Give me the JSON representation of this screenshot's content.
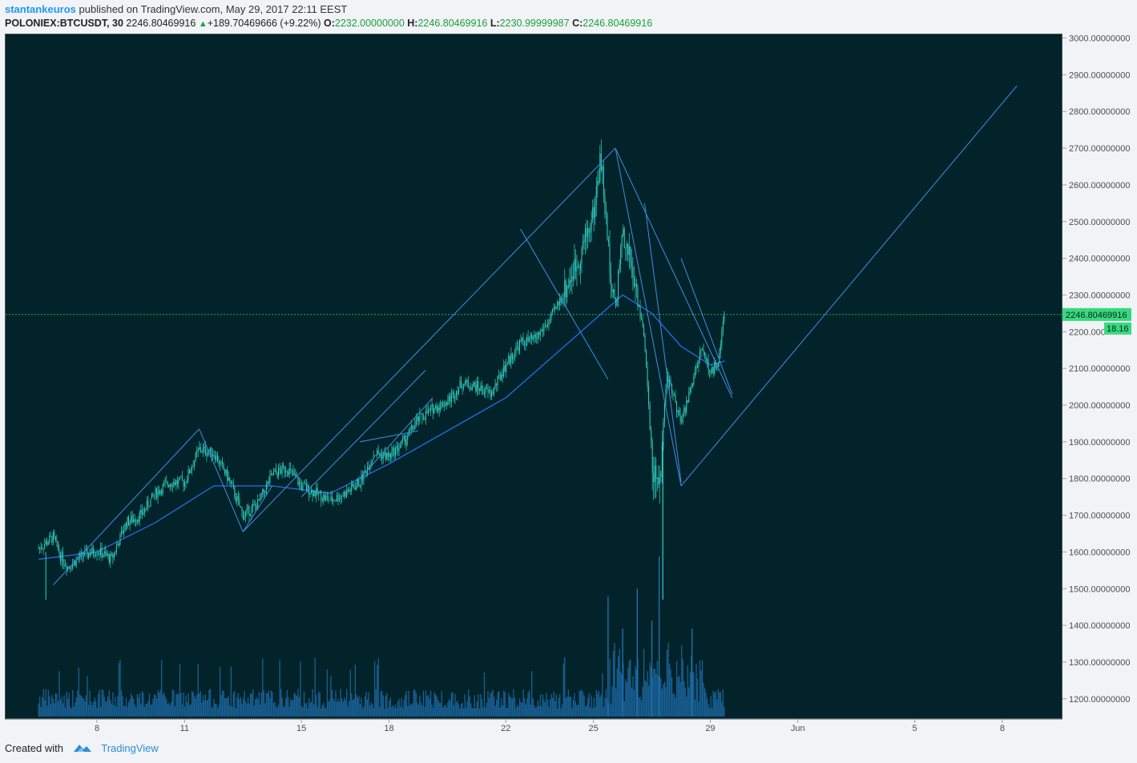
{
  "header": {
    "author": "stantankeuros",
    "published_text": "published on TradingView.com, May 29, 2017 22:11 EEST",
    "symbol": "POLONIEX:BTCUSDT, 30",
    "last_price": "2246.80469916",
    "change_arrow": "▲",
    "change": "+189.70469666 (+9.22%)",
    "o_label": "O:",
    "o_value": "2232.00000000",
    "h_label": "H:",
    "h_value": "2246.80469916",
    "l_label": "L:",
    "l_value": "2230.99999987",
    "c_label": "C:",
    "c_value": "2246.80469916"
  },
  "price_axis": {
    "labels": [
      "3000.00000000",
      "2900.00000000",
      "2800.00000000",
      "2700.00000000",
      "2600.00000000",
      "2500.00000000",
      "2400.00000000",
      "2300.00000000",
      "2200.000",
      "2100.00000000",
      "2000.00000000",
      "1900.00000000",
      "1800.00000000",
      "1700.00000000",
      "1600.00000000",
      "1500.00000000",
      "1400.00000000",
      "1300.00000000",
      "1200.00000000"
    ],
    "current_price_tag": "2246.80469916",
    "countdown_tag": "18.16"
  },
  "time_axis": {
    "labels": [
      "8",
      "11",
      "15",
      "18",
      "22",
      "25",
      "29",
      "Jun",
      "5",
      "8"
    ]
  },
  "footer": {
    "created_with": "Created with",
    "brand": "TradingView"
  },
  "colors": {
    "background": "#012329",
    "candle": "#33d0c0",
    "trendline": "#3d85d6",
    "moving_average": "#2468e0",
    "volume": "#1f6fb0",
    "price_tag": "#39d87f"
  },
  "chart_data": {
    "type": "candlestick",
    "symbol": "POLONIEX:BTCUSDT",
    "interval": "30",
    "price_axis_range": [
      1150,
      3050
    ],
    "price_path": [
      [
        "May 6",
        1610
      ],
      [
        "May 6 12h",
        1640
      ],
      [
        "May 6 18h",
        1590
      ],
      [
        "May 7",
        1560
      ],
      [
        "May 7 12h",
        1590
      ],
      [
        "May 8",
        1605
      ],
      [
        "May 8 12h",
        1580
      ],
      [
        "May 9",
        1680
      ],
      [
        "May 9 12h",
        1700
      ],
      [
        "May 10",
        1760
      ],
      [
        "May 10 12h",
        1790
      ],
      [
        "May 11",
        1790
      ],
      [
        "May 11 12h",
        1880
      ],
      [
        "May 12",
        1870
      ],
      [
        "May 12 12h",
        1800
      ],
      [
        "May 13",
        1700
      ],
      [
        "May 13 12h",
        1730
      ],
      [
        "May 14",
        1810
      ],
      [
        "May 14 12h",
        1830
      ],
      [
        "May 15",
        1780
      ],
      [
        "May 15 12h",
        1760
      ],
      [
        "May 16",
        1740
      ],
      [
        "May 16 12h",
        1760
      ],
      [
        "May 17",
        1790
      ],
      [
        "May 17 12h",
        1870
      ],
      [
        "May 18",
        1860
      ],
      [
        "May 18 12h",
        1900
      ],
      [
        "May 19",
        1960
      ],
      [
        "May 19 12h",
        1990
      ],
      [
        "May 20",
        2010
      ],
      [
        "May 20 12h",
        2060
      ],
      [
        "May 21",
        2050
      ],
      [
        "May 21 12h",
        2030
      ],
      [
        "May 22",
        2110
      ],
      [
        "May 22 12h",
        2170
      ],
      [
        "May 23",
        2180
      ],
      [
        "May 23 12h",
        2230
      ],
      [
        "May 24",
        2310
      ],
      [
        "May 24 12h",
        2400
      ],
      [
        "May 25",
        2520
      ],
      [
        "May 25 6h",
        2680
      ],
      [
        "May 25 12h",
        2430
      ],
      [
        "May 25 18h",
        2260
      ],
      [
        "May 26",
        2480
      ],
      [
        "May 26 6h",
        2400
      ],
      [
        "May 26 12h",
        2290
      ],
      [
        "May 26 18h",
        2180
      ],
      [
        "May 27",
        1850
      ],
      [
        "May 27 6h",
        1760
      ],
      [
        "May 27 12h",
        2080
      ],
      [
        "May 27 18h",
        2020
      ],
      [
        "May 28",
        1950
      ],
      [
        "May 28 12h",
        2100
      ],
      [
        "May 28 18h",
        2160
      ],
      [
        "May 29",
        2080
      ],
      [
        "May 29 6h",
        2120
      ],
      [
        "May 29 12h",
        2246.8
      ]
    ],
    "spike_low": 1470,
    "moving_average": [
      [
        "May 6",
        1580
      ],
      [
        "May 8",
        1600
      ],
      [
        "May 10",
        1680
      ],
      [
        "May 12",
        1780
      ],
      [
        "May 14",
        1780
      ],
      [
        "May 16",
        1760
      ],
      [
        "May 18",
        1840
      ],
      [
        "May 20",
        1930
      ],
      [
        "May 22",
        2020
      ],
      [
        "May 24",
        2160
      ],
      [
        "May 26",
        2300
      ],
      [
        "May 27",
        2250
      ],
      [
        "May 28",
        2160
      ],
      [
        "May 29",
        2110
      ],
      [
        "May 29 12h",
        2120
      ]
    ],
    "current_price": 2246.80469916,
    "trendlines": [
      [
        [
          "May 6 12h",
          1510
        ],
        [
          "May 11 12h",
          1935
        ]
      ],
      [
        [
          "May 11 12h",
          1935
        ],
        [
          "May 13",
          1655
        ]
      ],
      [
        [
          "May 13",
          1655
        ],
        [
          "May 14",
          1780
        ]
      ],
      [
        [
          "May 13",
          1655
        ],
        [
          "May 25 18h",
          2700
        ]
      ],
      [
        [
          "May 25 18h",
          2700
        ],
        [
          "May 29 18h",
          2020
        ]
      ],
      [
        [
          "May 25 18h",
          2700
        ],
        [
          "May 28",
          1780
        ]
      ],
      [
        [
          "May 28",
          1780
        ],
        [
          "Jun 8 12h",
          2870
        ]
      ],
      [
        [
          "May 15",
          1750
        ],
        [
          "May 19 6h",
          2095
        ]
      ],
      [
        [
          "May 17",
          1900
        ],
        [
          "May 19",
          1930
        ]
      ],
      [
        [
          "May 17",
          1800
        ],
        [
          "May 19 12h",
          2020
        ]
      ],
      [
        [
          "May 22 12h",
          2480
        ],
        [
          "May 25 12h",
          2070
        ]
      ],
      [
        [
          "May 26 18h",
          2550
        ],
        [
          "May 28",
          1790
        ]
      ],
      [
        [
          "May 28",
          2400
        ],
        [
          "May 29 18h",
          2030
        ]
      ]
    ]
  }
}
